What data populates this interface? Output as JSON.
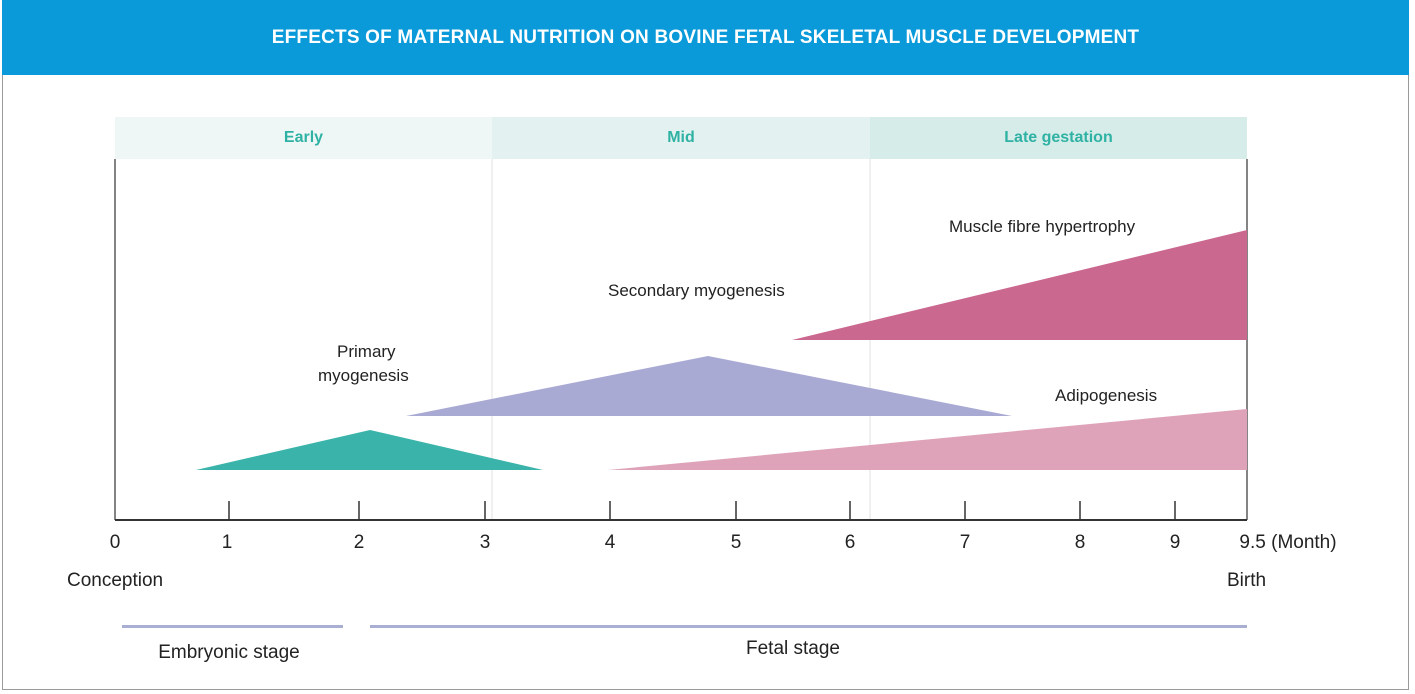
{
  "title": "EFFECTS OF MATERNAL NUTRITION ON BOVINE FETAL SKELETAL MUSCLE DEVELOPMENT",
  "phases": [
    {
      "label": "Early",
      "color": "#eef7f6"
    },
    {
      "label": "Mid",
      "color": "#e3f2f1"
    },
    {
      "label": "Late gestation",
      "color": "#d5ece9"
    }
  ],
  "processes": {
    "primary": {
      "label_line1": "Primary",
      "label_line2": "myogenesis",
      "color": "#3ab4aa"
    },
    "secondary": {
      "label": "Secondary myogenesis",
      "color": "#a9aad4"
    },
    "hypertrophy": {
      "label": "Muscle fibre hypertrophy",
      "color": "#cb688f"
    },
    "adipogenesis": {
      "label": "Adipogenesis",
      "color": "#dea3b8"
    }
  },
  "axis": {
    "ticks": [
      "0",
      "1",
      "2",
      "3",
      "4",
      "5",
      "6",
      "7",
      "8",
      "9",
      "9.5 (Month)"
    ],
    "start_label": "Conception",
    "end_label": "Birth",
    "color": "#333333"
  },
  "stages": {
    "embryonic": "Embryonic stage",
    "fetal": "Fetal stage",
    "color": "#a9aed3"
  }
}
